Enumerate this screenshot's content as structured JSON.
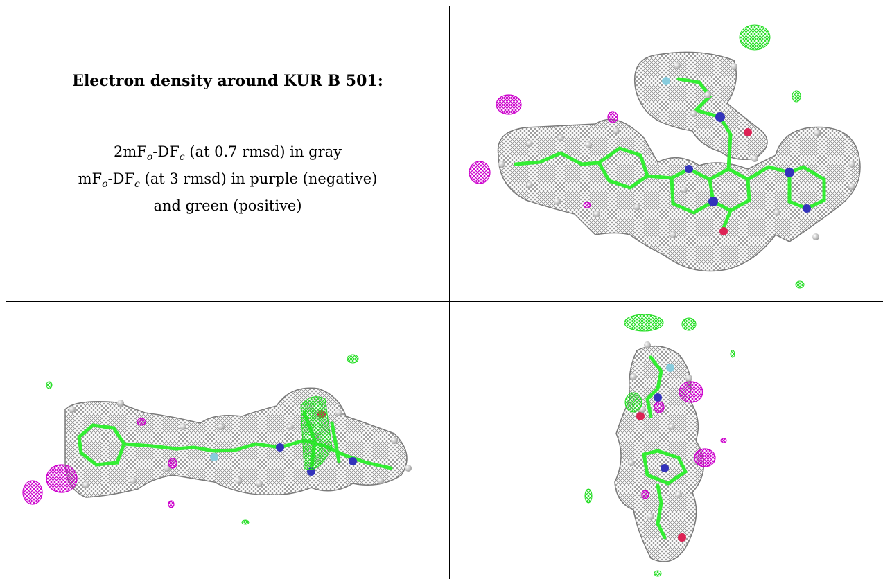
{
  "legend": {
    "title": "Electron density around KUR B 501:",
    "line1": {
      "prefix": "2mF",
      "sub1": "o",
      "mid": "-DF",
      "sub2": "c",
      "suffix": " (at 0.7 rmsd) in gray"
    },
    "line2": {
      "prefix": "mF",
      "sub1": "o",
      "mid": "-DF",
      "sub2": "c",
      "suffix": " (at 3 rmsd) in purple (negative)"
    },
    "line3": "and green (positive)"
  },
  "colors": {
    "density_2fofc": "#8a8a8a",
    "negative": "#cc00cc",
    "positive": "#22dd22",
    "bond_carbon": "#33ee33",
    "nitrogen": "#3333bb",
    "oxygen": "#dd2255",
    "fluorine": "#88ccdd",
    "hydrogen": "#dcdcdc"
  }
}
